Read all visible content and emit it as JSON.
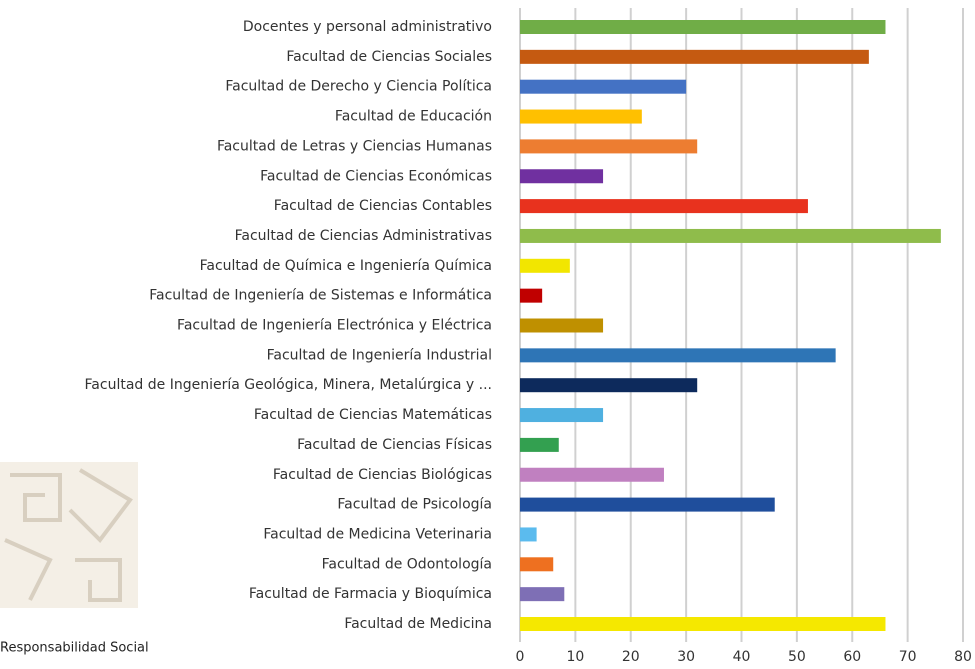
{
  "chart_data": {
    "type": "bar",
    "orientation": "horizontal",
    "categories": [
      "Docentes y personal administrativo",
      "Facultad de Ciencias Sociales",
      "Facultad de Derecho y Ciencia Política",
      "Facultad de Educación",
      "Facultad de Letras y Ciencias Humanas",
      "Facultad de Ciencias Económicas",
      "Facultad de Ciencias Contables",
      "Facultad de Ciencias Administrativas",
      "Facultad de Química e Ingeniería Química",
      "Facultad de Ingeniería de Sistemas e Informática",
      "Facultad de Ingeniería Electrónica y Eléctrica",
      "Facultad de Ingeniería Industrial",
      "Facultad de Ingeniería Geológica, Minera, Metalúrgica y ...",
      "Facultad de Ciencias Matemáticas",
      "Facultad de Ciencias Físicas",
      "Facultad de Ciencias Biológicas",
      "Facultad de Psicología",
      "Facultad de Medicina Veterinaria",
      "Facultad de Odontología",
      "Facultad de Farmacia y Bioquímica",
      "Facultad de Medicina"
    ],
    "values": [
      66,
      63,
      30,
      22,
      32,
      15,
      52,
      76,
      9,
      4,
      15,
      57,
      32,
      15,
      7,
      26,
      46,
      3,
      6,
      8,
      66
    ],
    "colors": [
      "#70ad47",
      "#c55a11",
      "#4472c4",
      "#ffc000",
      "#ed7d31",
      "#7030a0",
      "#e8321e",
      "#8fbc4b",
      "#f2e600",
      "#c00000",
      "#bf9000",
      "#2e75b6",
      "#0d2a5c",
      "#4fb0e0",
      "#33a050",
      "#c080c0",
      "#1f4e9c",
      "#5bbbee",
      "#ee7020",
      "#7e6fb5",
      "#f5e800"
    ],
    "xlim": [
      0,
      80
    ],
    "xticks": [
      0,
      10,
      20,
      30,
      40,
      50,
      60,
      70,
      80
    ],
    "grid": true
  },
  "branding": {
    "text": "Responsabilidad Social"
  }
}
